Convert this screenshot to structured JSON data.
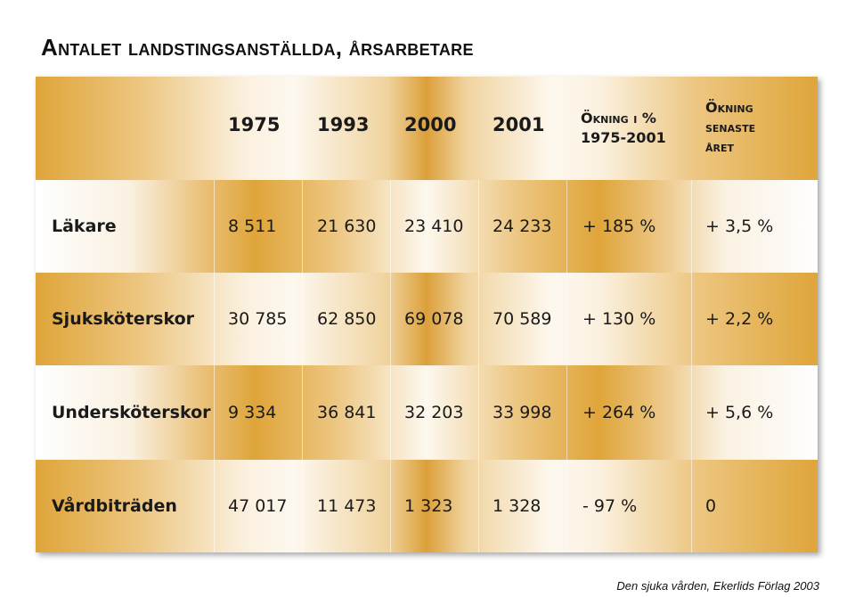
{
  "title": "Antalet landstingsanställda, årsarbetare",
  "source": "Den sjuka vården, Ekerlids Förlag 2003",
  "colors": {
    "gold": "#dfa53a",
    "cream": "#fdf8ef"
  },
  "chart_data": {
    "type": "table",
    "title": "Antalet landstingsanställda, årsarbetare",
    "columns": [
      "1975",
      "1993",
      "2000",
      "2001",
      "Ökning i % 1975-2001",
      "Ökning senaste året"
    ],
    "header": {
      "years": [
        "1975",
        "1993",
        "2000",
        "2001"
      ],
      "change_total_line1": "Ökning i %",
      "change_total_line2": "1975-2001",
      "change_last_line1": "Ökning",
      "change_last_line2": "senaste",
      "change_last_line3": "året"
    },
    "rows": [
      {
        "label": "Läkare",
        "cells": [
          "8 511",
          "21 630",
          "23 410",
          "24 233",
          "+ 185 %",
          "+ 3,5 %"
        ]
      },
      {
        "label": "Sjuksköterskor",
        "cells": [
          "30 785",
          "62 850",
          "69 078",
          "70 589",
          "+ 130 %",
          "+ 2,2 %"
        ]
      },
      {
        "label": "Undersköterskor",
        "cells": [
          "9 334",
          "36 841",
          "32 203",
          "33 998",
          "+ 264 %",
          "+ 5,6 %"
        ]
      },
      {
        "label": "Vårdbiträden",
        "cells": [
          "47 017",
          "11 473",
          "1 323",
          "1 328",
          "- 97 %",
          "0"
        ]
      }
    ]
  }
}
